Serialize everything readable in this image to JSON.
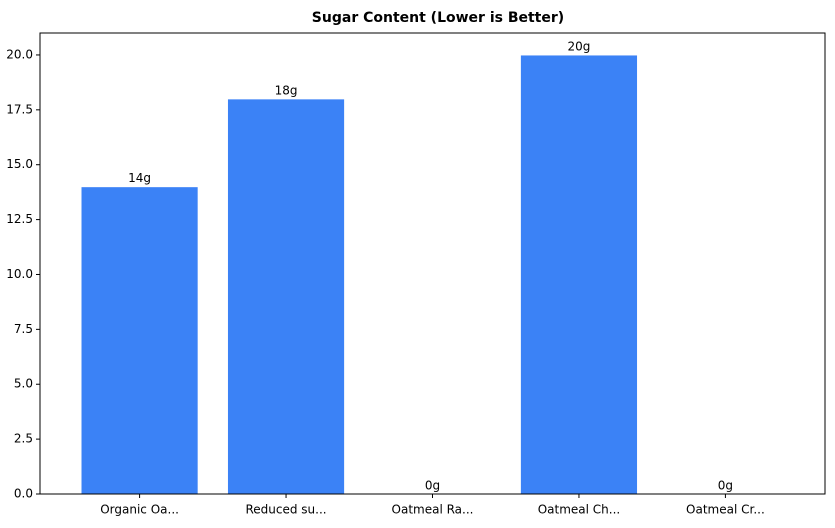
{
  "chart_data": {
    "type": "bar",
    "title": "Sugar Content (Lower is Better)",
    "categories": [
      "Organic Oa...",
      "Reduced su...",
      "Oatmeal Ra...",
      "Oatmeal Ch...",
      "Oatmeal Cr..."
    ],
    "values": [
      14,
      18,
      0,
      20,
      0
    ],
    "value_labels": [
      "14g",
      "18g",
      "0g",
      "20g",
      "0g"
    ],
    "color": "#3b82f6",
    "ylim": [
      0,
      21
    ],
    "yticks": [
      {
        "value": 0,
        "label": "0.0"
      },
      {
        "value": 2.5,
        "label": "2.5"
      },
      {
        "value": 5,
        "label": "5.0"
      },
      {
        "value": 7.5,
        "label": "7.5"
      },
      {
        "value": 10,
        "label": "10.0"
      },
      {
        "value": 12.5,
        "label": "12.5"
      },
      {
        "value": 15,
        "label": "15.0"
      },
      {
        "value": 17.5,
        "label": "17.5"
      },
      {
        "value": 20,
        "label": "20.0"
      }
    ],
    "grid": false
  }
}
